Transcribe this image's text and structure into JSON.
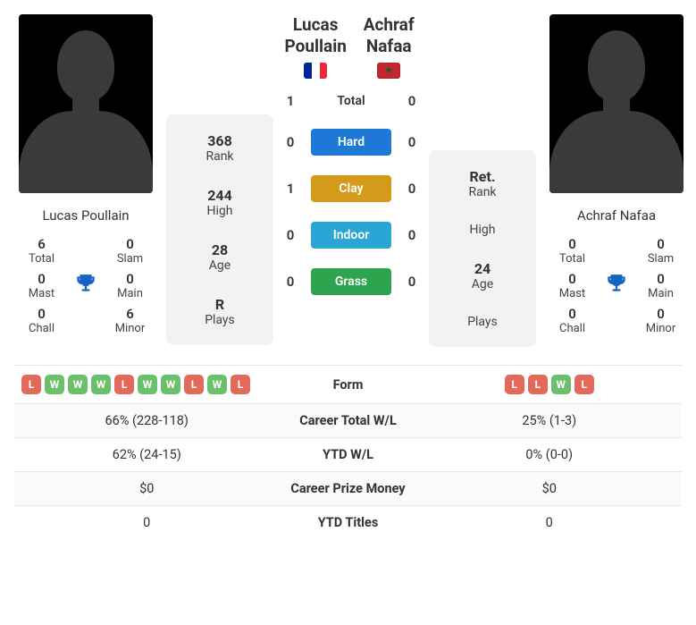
{
  "p1": {
    "name": "Lucas Poullain",
    "flag": "fr",
    "info": {
      "rank_val": "368",
      "rank_lbl": "Rank",
      "high_val": "244",
      "high_lbl": "High",
      "age_val": "28",
      "age_lbl": "Age",
      "plays_val": "R",
      "plays_lbl": "Plays"
    },
    "stats": {
      "total_val": "6",
      "total_lbl": "Total",
      "slam_val": "0",
      "slam_lbl": "Slam",
      "mast_val": "0",
      "mast_lbl": "Mast",
      "main_val": "0",
      "main_lbl": "Main",
      "chall_val": "0",
      "chall_lbl": "Chall",
      "minor_val": "6",
      "minor_lbl": "Minor"
    }
  },
  "p2": {
    "name": "Achraf Nafaa",
    "flag": "ma",
    "info": {
      "rank_val": "Ret.",
      "rank_lbl": "Rank",
      "high_val": "",
      "high_lbl": "High",
      "age_val": "24",
      "age_lbl": "Age",
      "plays_val": "",
      "plays_lbl": "Plays"
    },
    "stats": {
      "total_val": "0",
      "total_lbl": "Total",
      "slam_val": "0",
      "slam_lbl": "Slam",
      "mast_val": "0",
      "mast_lbl": "Mast",
      "main_val": "0",
      "main_lbl": "Main",
      "chall_val": "0",
      "chall_lbl": "Chall",
      "minor_val": "0",
      "minor_lbl": "Minor"
    }
  },
  "h2h": {
    "rows": [
      {
        "left": "1",
        "label": "Total",
        "right": "0",
        "pill": false,
        "color": ""
      },
      {
        "left": "0",
        "label": "Hard",
        "right": "0",
        "pill": true,
        "color": "#1e78d6"
      },
      {
        "left": "1",
        "label": "Clay",
        "right": "0",
        "pill": true,
        "color": "#d69a1a"
      },
      {
        "left": "0",
        "label": "Indoor",
        "right": "0",
        "pill": true,
        "color": "#2aa6d4"
      },
      {
        "left": "0",
        "label": "Grass",
        "right": "0",
        "pill": true,
        "color": "#2ea44f"
      }
    ]
  },
  "form": {
    "rows": [
      {
        "label": "Form",
        "leftChips": [
          "L",
          "W",
          "W",
          "W",
          "L",
          "W",
          "W",
          "L",
          "W",
          "L"
        ],
        "rightChips": [
          "L",
          "L",
          "W",
          "L"
        ]
      },
      {
        "label": "Career Total W/L",
        "left": "66% (228-118)",
        "right": "25% (1-3)"
      },
      {
        "label": "YTD W/L",
        "left": "62% (24-15)",
        "right": "0% (0-0)"
      },
      {
        "label": "Career Prize Money",
        "left": "$0",
        "right": "$0"
      },
      {
        "label": "YTD Titles",
        "left": "0",
        "right": "0"
      }
    ]
  },
  "colors": {
    "chip_w": "#6bc06b",
    "chip_l": "#e36a5a"
  }
}
